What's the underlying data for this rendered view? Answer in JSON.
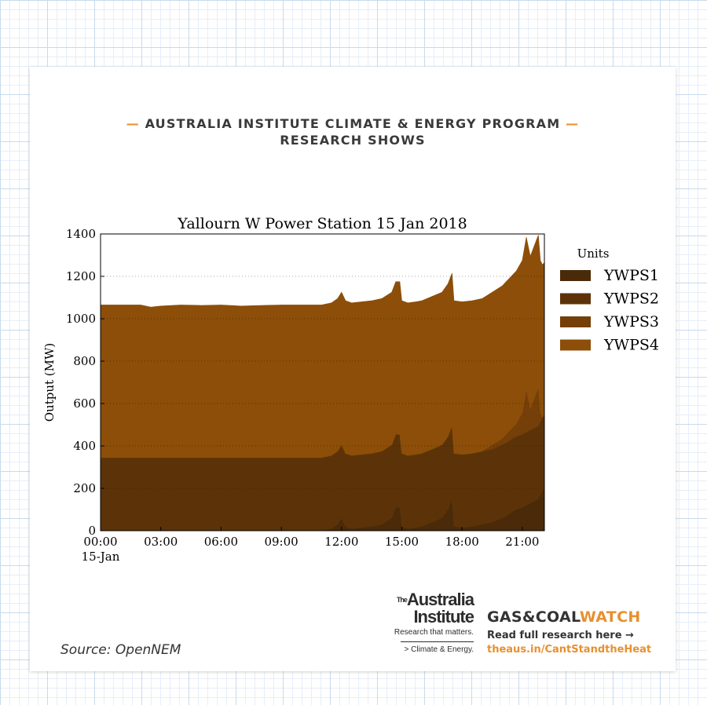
{
  "header": {
    "dash": "—",
    "line1": "AUSTRALIA INSTITUTE CLIMATE & ENERGY PROGRAM",
    "line2": "RESEARCH SHOWS"
  },
  "chart_data": {
    "type": "area",
    "stacked": true,
    "title": "Yallourn W Power Station 15 Jan 2018",
    "ylabel": "Output (MW)",
    "xlabel": "",
    "ylim": [
      0,
      1400
    ],
    "yticks": [
      0,
      200,
      400,
      600,
      800,
      1000,
      1200,
      1400
    ],
    "xlim": [
      0,
      22.1
    ],
    "xticks": [
      {
        "value": 0,
        "label": "00:00",
        "sublabel": "15-Jan"
      },
      {
        "value": 3,
        "label": "03:00"
      },
      {
        "value": 6,
        "label": "06:00"
      },
      {
        "value": 9,
        "label": "09:00"
      },
      {
        "value": 12,
        "label": "12:00"
      },
      {
        "value": 15,
        "label": "15:00"
      },
      {
        "value": 18,
        "label": "18:00"
      },
      {
        "value": 21,
        "label": "21:00"
      }
    ],
    "grid": "horizontal dotted",
    "legend": {
      "title": "Units",
      "placement": "right-outside"
    },
    "x": [
      0,
      0.1,
      0.3,
      0.6,
      1.0,
      1.5,
      1.8,
      1.85,
      1.95,
      2.0,
      2.5,
      3.0,
      4.0,
      5.0,
      6.0,
      7.0,
      8.0,
      9.0,
      10.0,
      11.0,
      11.5,
      11.8,
      12.0,
      12.2,
      12.5,
      13.0,
      13.5,
      14.0,
      14.5,
      14.7,
      14.9,
      15.0,
      15.3,
      15.7,
      16.0,
      16.5,
      17.0,
      17.3,
      17.5,
      17.6,
      18.0,
      18.5,
      19.0,
      19.5,
      20.0,
      20.2,
      20.5,
      20.7,
      21.0,
      21.2,
      21.4,
      21.6,
      21.8,
      21.9,
      22.0,
      22.1
    ],
    "series": [
      {
        "name": "YWPS1",
        "color": "#4a2a08",
        "values": [
          0,
          0,
          0,
          0,
          0,
          0,
          0,
          0,
          0,
          0,
          0,
          0,
          0,
          0,
          0,
          0,
          0,
          0,
          0,
          0,
          10,
          30,
          60,
          20,
          10,
          15,
          20,
          30,
          60,
          110,
          110,
          20,
          10,
          15,
          20,
          40,
          60,
          100,
          150,
          20,
          15,
          20,
          30,
          40,
          60,
          70,
          90,
          100,
          110,
          120,
          130,
          140,
          150,
          170,
          190,
          200
        ]
      },
      {
        "name": "YWPS2",
        "color": "#5c3308",
        "values": [
          345,
          345,
          345,
          345,
          345,
          345,
          345,
          345,
          345,
          345,
          345,
          345,
          345,
          345,
          345,
          345,
          345,
          345,
          345,
          345,
          345,
          345,
          345,
          345,
          345,
          345,
          345,
          345,
          345,
          345,
          345,
          345,
          345,
          345,
          345,
          345,
          345,
          345,
          345,
          345,
          345,
          345,
          345,
          345,
          345,
          345,
          345,
          345,
          345,
          345,
          345,
          345,
          345,
          345,
          345,
          345
        ]
      },
      {
        "name": "YWPS3",
        "color": "#743f08",
        "values": [
          0,
          0,
          0,
          0,
          0,
          0,
          0,
          0,
          0,
          0,
          0,
          0,
          0,
          0,
          0,
          0,
          0,
          0,
          0,
          0,
          0,
          0,
          0,
          0,
          0,
          0,
          0,
          0,
          0,
          0,
          0,
          0,
          0,
          0,
          0,
          0,
          0,
          0,
          0,
          0,
          0,
          0,
          0,
          20,
          30,
          40,
          50,
          60,
          100,
          200,
          100,
          140,
          180,
          40,
          0,
          0
        ]
      },
      {
        "name": "YWPS4",
        "color": "#8c4e08",
        "values": [
          720,
          720,
          720,
          720,
          720,
          720,
          720,
          720,
          720,
          720,
          710,
          715,
          720,
          718,
          720,
          715,
          718,
          720,
          720,
          720,
          720,
          720,
          720,
          720,
          720,
          720,
          720,
          720,
          720,
          720,
          720,
          720,
          720,
          720,
          720,
          720,
          720,
          720,
          720,
          720,
          720,
          720,
          720,
          720,
          720,
          720,
          720,
          720,
          720,
          720,
          720,
          720,
          720,
          720,
          720,
          720
        ]
      }
    ]
  },
  "source": "Source: OpenNEM",
  "logo_tai": {
    "the": "The",
    "line1": "Australia",
    "line2": "Institute",
    "tagline": "Research that matters.",
    "sub": "> Climate & Energy."
  },
  "logo_gcw": {
    "part1": "GAS&COAL",
    "part2": "WATCH",
    "read": "Read full research here →",
    "link": "theaus.in/CantStandtheHeat"
  }
}
